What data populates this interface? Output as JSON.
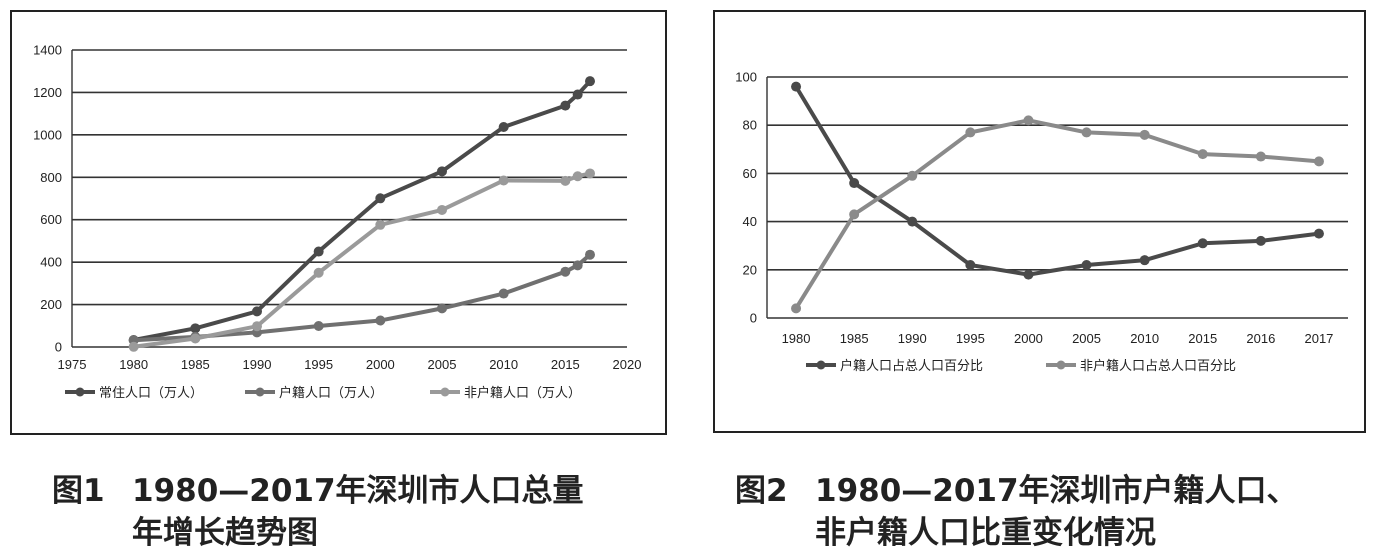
{
  "figures": [
    {
      "caption_number": "图1",
      "caption_line1": "1980—2017年深圳市人口总量",
      "caption_line2": "年增长趋势图"
    },
    {
      "caption_number": "图2",
      "caption_line1": "1980—2017年深圳市户籍人口、",
      "caption_line2": "非户籍人口比重变化情况"
    }
  ],
  "colors": {
    "dark": "#4a4a4a",
    "mid": "#707070",
    "light": "#9a9a9a",
    "grid": "#333333"
  },
  "chart_data": [
    {
      "type": "line",
      "title": "",
      "x_axis": "numeric",
      "xlim": [
        1975,
        2020
      ],
      "ylim": [
        0,
        1400
      ],
      "xticks": [
        1975,
        1980,
        1985,
        1990,
        1995,
        2000,
        2005,
        2010,
        2015,
        2020
      ],
      "yticks": [
        0,
        200,
        400,
        600,
        800,
        1000,
        1200,
        1400
      ],
      "grid": "horizontal",
      "legend_position": "bottom",
      "series": [
        {
          "name": "常住人口（万人）",
          "color": "#4a4a4a",
          "x": [
            1980,
            1985,
            1990,
            1995,
            2000,
            2005,
            2010,
            2015,
            2016,
            2017
          ],
          "y": [
            33,
            88,
            168,
            450,
            701,
            828,
            1037,
            1138,
            1190,
            1253
          ]
        },
        {
          "name": "户籍人口（万人）",
          "color": "#707070",
          "x": [
            1980,
            1985,
            1990,
            1995,
            2000,
            2005,
            2010,
            2015,
            2016,
            2017
          ],
          "y": [
            32,
            48,
            69,
            99,
            125,
            182,
            252,
            355,
            385,
            435
          ]
        },
        {
          "name": "非户籍人口（万人）",
          "color": "#9a9a9a",
          "x": [
            1980,
            1985,
            1990,
            1995,
            2000,
            2005,
            2010,
            2015,
            2016,
            2017
          ],
          "y": [
            1,
            40,
            98,
            350,
            576,
            646,
            785,
            783,
            805,
            818
          ]
        }
      ]
    },
    {
      "type": "line",
      "title": "",
      "x_axis": "categorical",
      "categories": [
        "1980",
        "1985",
        "1990",
        "1995",
        "2000",
        "2005",
        "2010",
        "2015",
        "2016",
        "2017"
      ],
      "ylim": [
        0,
        100
      ],
      "yticks": [
        0,
        20,
        40,
        60,
        80,
        100
      ],
      "grid": "horizontal",
      "legend_position": "bottom",
      "series": [
        {
          "name": "户籍人口占总人口百分比",
          "color": "#4a4a4a",
          "values": [
            96,
            56,
            40,
            22,
            18,
            22,
            24,
            31,
            32,
            35
          ]
        },
        {
          "name": "非户籍人口占总人口百分比",
          "color": "#8a8a8a",
          "values": [
            4,
            43,
            59,
            77,
            82,
            77,
            76,
            68,
            67,
            65
          ]
        }
      ]
    }
  ]
}
